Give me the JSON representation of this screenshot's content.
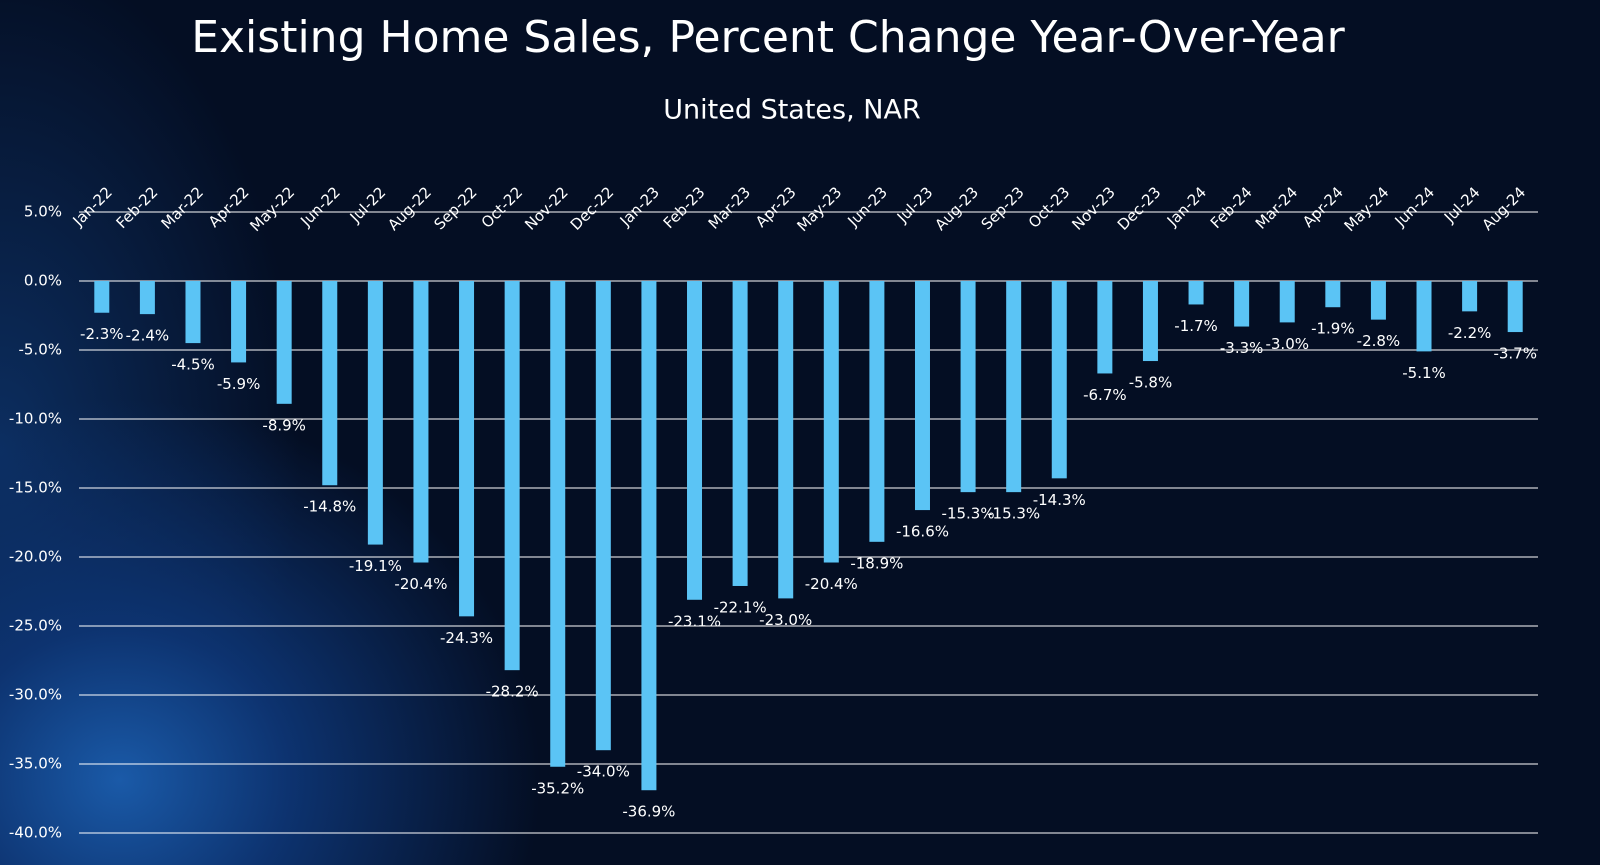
{
  "chart_data": {
    "type": "bar",
    "title": "Existing Home Sales, Percent Change Year-Over-Year",
    "subtitle": "United States, NAR",
    "categories": [
      "Jan-22",
      "Feb-22",
      "Mar-22",
      "Apr-22",
      "May-22",
      "Jun-22",
      "Jul-22",
      "Aug-22",
      "Sep-22",
      "Oct-22",
      "Nov-22",
      "Dec-22",
      "Jan-23",
      "Feb-23",
      "Mar-23",
      "Apr-23",
      "May-23",
      "Jun-23",
      "Jul-23",
      "Aug-23",
      "Sep-23",
      "Oct-23",
      "Nov-23",
      "Dec-23",
      "Jan-24",
      "Feb-24",
      "Mar-24",
      "Apr-24",
      "May-24",
      "Jun-24",
      "Jul-24",
      "Aug-24"
    ],
    "values": [
      -2.3,
      -2.4,
      -4.5,
      -5.9,
      -8.9,
      -14.8,
      -19.1,
      -20.4,
      -24.3,
      -28.2,
      -35.2,
      -34.0,
      -36.9,
      -23.1,
      -22.1,
      -23.0,
      -20.4,
      -18.9,
      -16.6,
      -15.3,
      -15.3,
      -14.3,
      -6.7,
      -5.8,
      -1.7,
      -3.3,
      -3.0,
      -1.9,
      -2.8,
      -5.1,
      -2.2,
      -3.7
    ],
    "value_labels": [
      "-2.3%",
      "-2.4%",
      "-4.5%",
      "-5.9%",
      "-8.9%",
      "-14.8%",
      "-19.1%",
      "-20.4%",
      "-24.3%",
      "-28.2%",
      "-35.2%",
      "-34.0%",
      "-36.9%",
      "-23.1%",
      "-22.1%",
      "-23.0%",
      "-20.4%",
      "-18.9%",
      "-16.6%",
      "-15.3%",
      "-15.3%",
      "-14.3%",
      "-6.7%",
      "-5.8%",
      "-1.7%",
      "-3.3%",
      "-3.0%",
      "-1.9%",
      "-2.8%",
      "-5.1%",
      "-2.2%",
      "-3.7%"
    ],
    "color": "#5bc4f5",
    "ylim": [
      -40,
      5
    ],
    "yticks": [
      {
        "value": 5,
        "label": "5.0%"
      },
      {
        "value": 0,
        "label": "0.0%"
      },
      {
        "value": -5,
        "label": "-5.0%"
      },
      {
        "value": -10,
        "label": "-10.0%"
      },
      {
        "value": -15,
        "label": "-15.0%"
      },
      {
        "value": -20,
        "label": "-20.0%"
      },
      {
        "value": -25,
        "label": "-25.0%"
      },
      {
        "value": -30,
        "label": "-30.0%"
      },
      {
        "value": -35,
        "label": "-35.0%"
      },
      {
        "value": -40,
        "label": "-40.0%"
      }
    ],
    "grid": true
  }
}
